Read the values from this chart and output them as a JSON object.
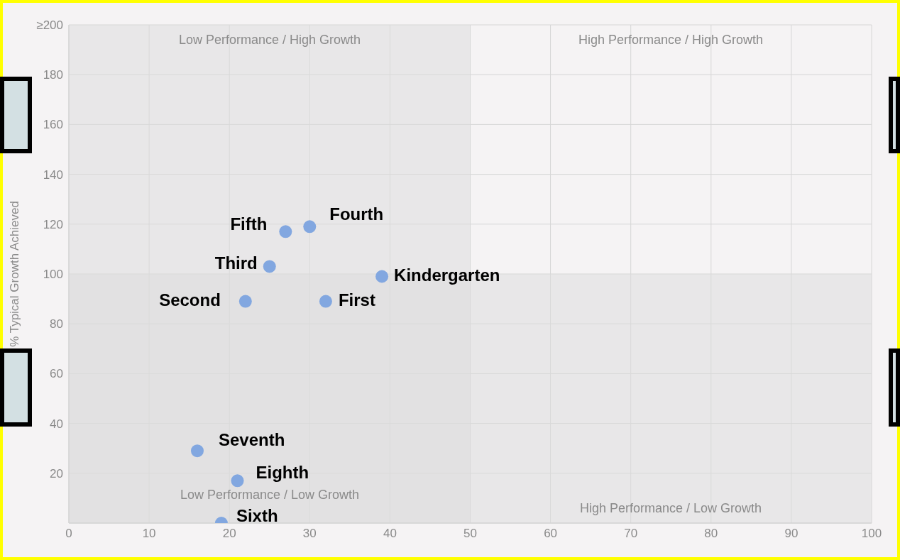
{
  "chart_data": {
    "type": "scatter",
    "ylabel": "% Typical Growth Achieved",
    "xlim": [
      0,
      100
    ],
    "xticks": [
      0,
      10,
      20,
      30,
      40,
      50,
      60,
      70,
      80,
      90,
      100
    ],
    "ylim": [
      0,
      200
    ],
    "yticks": [
      {
        "value": 0,
        "label": null
      },
      20,
      40,
      60,
      80,
      100,
      120,
      140,
      160,
      180,
      {
        "value": 200,
        "label": "≥200"
      }
    ],
    "grid": true,
    "legend": false,
    "marker": "circle",
    "series": [
      {
        "color": "#82a7e0",
        "x": [
          39,
          32,
          22,
          25,
          30,
          27,
          19,
          16,
          21
        ],
        "values": [
          99,
          89,
          89,
          103,
          119,
          117,
          0,
          29,
          17
        ]
      }
    ],
    "bands": [
      {
        "axis": "x",
        "from": 0,
        "to": 50,
        "color": "#dcdcdc"
      },
      {
        "axis": "y",
        "from": 0,
        "to": 100,
        "color": "#dcdcdc"
      }
    ],
    "annotations": [
      {
        "text": "Kindergarten",
        "x": 39,
        "y": 99
      },
      {
        "text": "First",
        "x": 32,
        "y": 89
      },
      {
        "text": "Second",
        "x": 22,
        "y": 89
      },
      {
        "text": "Third",
        "x": 25,
        "y": 103
      },
      {
        "text": "Fourth",
        "x": 30,
        "y": 119
      },
      {
        "text": "Fifth",
        "x": 27,
        "y": 117
      },
      {
        "text": "Sixth",
        "x": 19,
        "y": 0
      },
      {
        "text": "Seventh",
        "x": 16,
        "y": 29
      },
      {
        "text": "Eighth",
        "x": 21,
        "y": 17
      },
      "Low Performance / High Growth",
      "High Performance / High Growth",
      "Low Performance / Low Growth",
      "High Performance / Low Growth"
    ]
  }
}
